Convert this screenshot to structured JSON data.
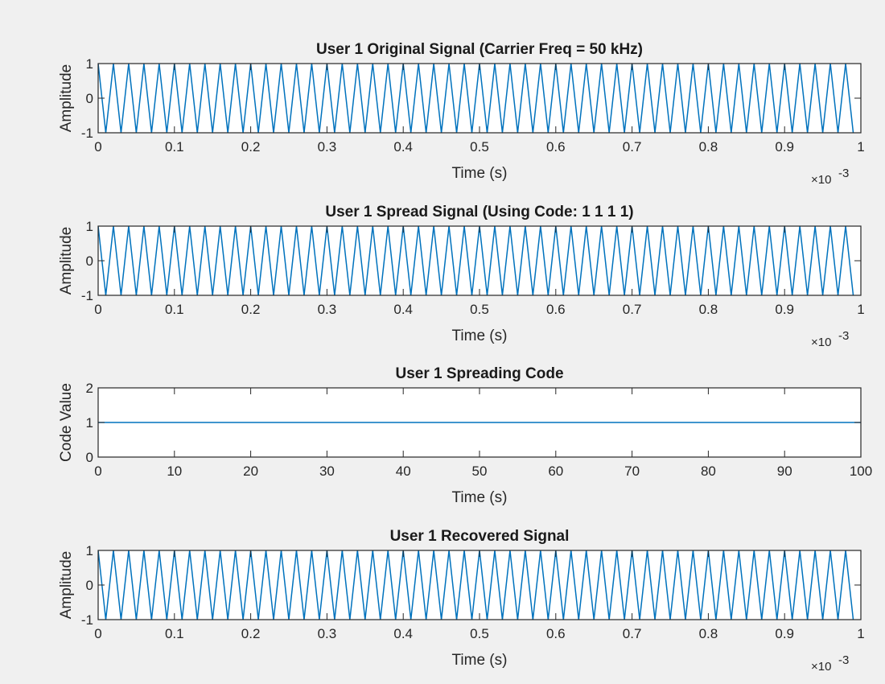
{
  "figure": {
    "background": "#f0f0f0",
    "axes_background": "#ffffff",
    "line_color": "#0072bd"
  },
  "chart_data": [
    {
      "type": "line",
      "title": "User 1 Original Signal (Carrier Freq = 50 kHz)",
      "xlabel": "Time (s)",
      "ylabel": "Amplitude",
      "xlim": [
        0,
        0.001
      ],
      "ylim": [
        -1,
        1
      ],
      "x_exponent_label": "×10",
      "x_exponent_power": "-3",
      "xticks": [
        0,
        0.1,
        0.2,
        0.3,
        0.4,
        0.5,
        0.6,
        0.7,
        0.8,
        0.9,
        1
      ],
      "yticks": [
        -1,
        0,
        1
      ],
      "xtick_labels": [
        "0",
        "0.1",
        "0.2",
        "0.3",
        "0.4",
        "0.5",
        "0.6",
        "0.7",
        "0.8",
        "0.9",
        "1"
      ],
      "ytick_labels": [
        "-1",
        "0",
        "1"
      ],
      "grid": false,
      "series": [
        {
          "signal": "cosine",
          "frequency_hz": 50000,
          "amplitude": 1,
          "x_start": 0,
          "x_end": 0.00099,
          "sample_step": 1e-05
        }
      ]
    },
    {
      "type": "line",
      "title": "User 1 Spread Signal (Using Code: 1  1  1  1)",
      "xlabel": "Time (s)",
      "ylabel": "Amplitude",
      "xlim": [
        0,
        0.001
      ],
      "ylim": [
        -1,
        1
      ],
      "x_exponent_label": "×10",
      "x_exponent_power": "-3",
      "xticks": [
        0,
        0.1,
        0.2,
        0.3,
        0.4,
        0.5,
        0.6,
        0.7,
        0.8,
        0.9,
        1
      ],
      "yticks": [
        -1,
        0,
        1
      ],
      "xtick_labels": [
        "0",
        "0.1",
        "0.2",
        "0.3",
        "0.4",
        "0.5",
        "0.6",
        "0.7",
        "0.8",
        "0.9",
        "1"
      ],
      "ytick_labels": [
        "-1",
        "0",
        "1"
      ],
      "grid": false,
      "series": [
        {
          "signal": "cosine",
          "frequency_hz": 50000,
          "amplitude": 1,
          "x_start": 0,
          "x_end": 0.00099,
          "sample_step": 1e-05
        }
      ]
    },
    {
      "type": "line",
      "title": "User 1 Spreading Code",
      "xlabel": "Time (s)",
      "ylabel": "Code Value",
      "xlim": [
        0,
        100
      ],
      "ylim": [
        0,
        2
      ],
      "x_exponent_label": "",
      "x_exponent_power": "",
      "xticks": [
        0,
        10,
        20,
        30,
        40,
        50,
        60,
        70,
        80,
        90,
        100
      ],
      "yticks": [
        0,
        1,
        2
      ],
      "xtick_labels": [
        "0",
        "10",
        "20",
        "30",
        "40",
        "50",
        "60",
        "70",
        "80",
        "90",
        "100"
      ],
      "ytick_labels": [
        "0",
        "1",
        "2"
      ],
      "grid": false,
      "series": [
        {
          "x": [
            0,
            100
          ],
          "y": [
            1,
            1
          ]
        }
      ]
    },
    {
      "type": "line",
      "title": "User 1 Recovered Signal",
      "xlabel": "Time (s)",
      "ylabel": "Amplitude",
      "xlim": [
        0,
        0.001
      ],
      "ylim": [
        -1,
        1
      ],
      "x_exponent_label": "×10",
      "x_exponent_power": "-3",
      "xticks": [
        0,
        0.1,
        0.2,
        0.3,
        0.4,
        0.5,
        0.6,
        0.7,
        0.8,
        0.9,
        1
      ],
      "yticks": [
        -1,
        0,
        1
      ],
      "xtick_labels": [
        "0",
        "0.1",
        "0.2",
        "0.3",
        "0.4",
        "0.5",
        "0.6",
        "0.7",
        "0.8",
        "0.9",
        "1"
      ],
      "ytick_labels": [
        "-1",
        "0",
        "1"
      ],
      "grid": false,
      "series": [
        {
          "signal": "cosine",
          "frequency_hz": 50000,
          "amplitude": 1,
          "x_start": 0,
          "x_end": 0.00099,
          "sample_step": 1e-05
        }
      ]
    }
  ]
}
